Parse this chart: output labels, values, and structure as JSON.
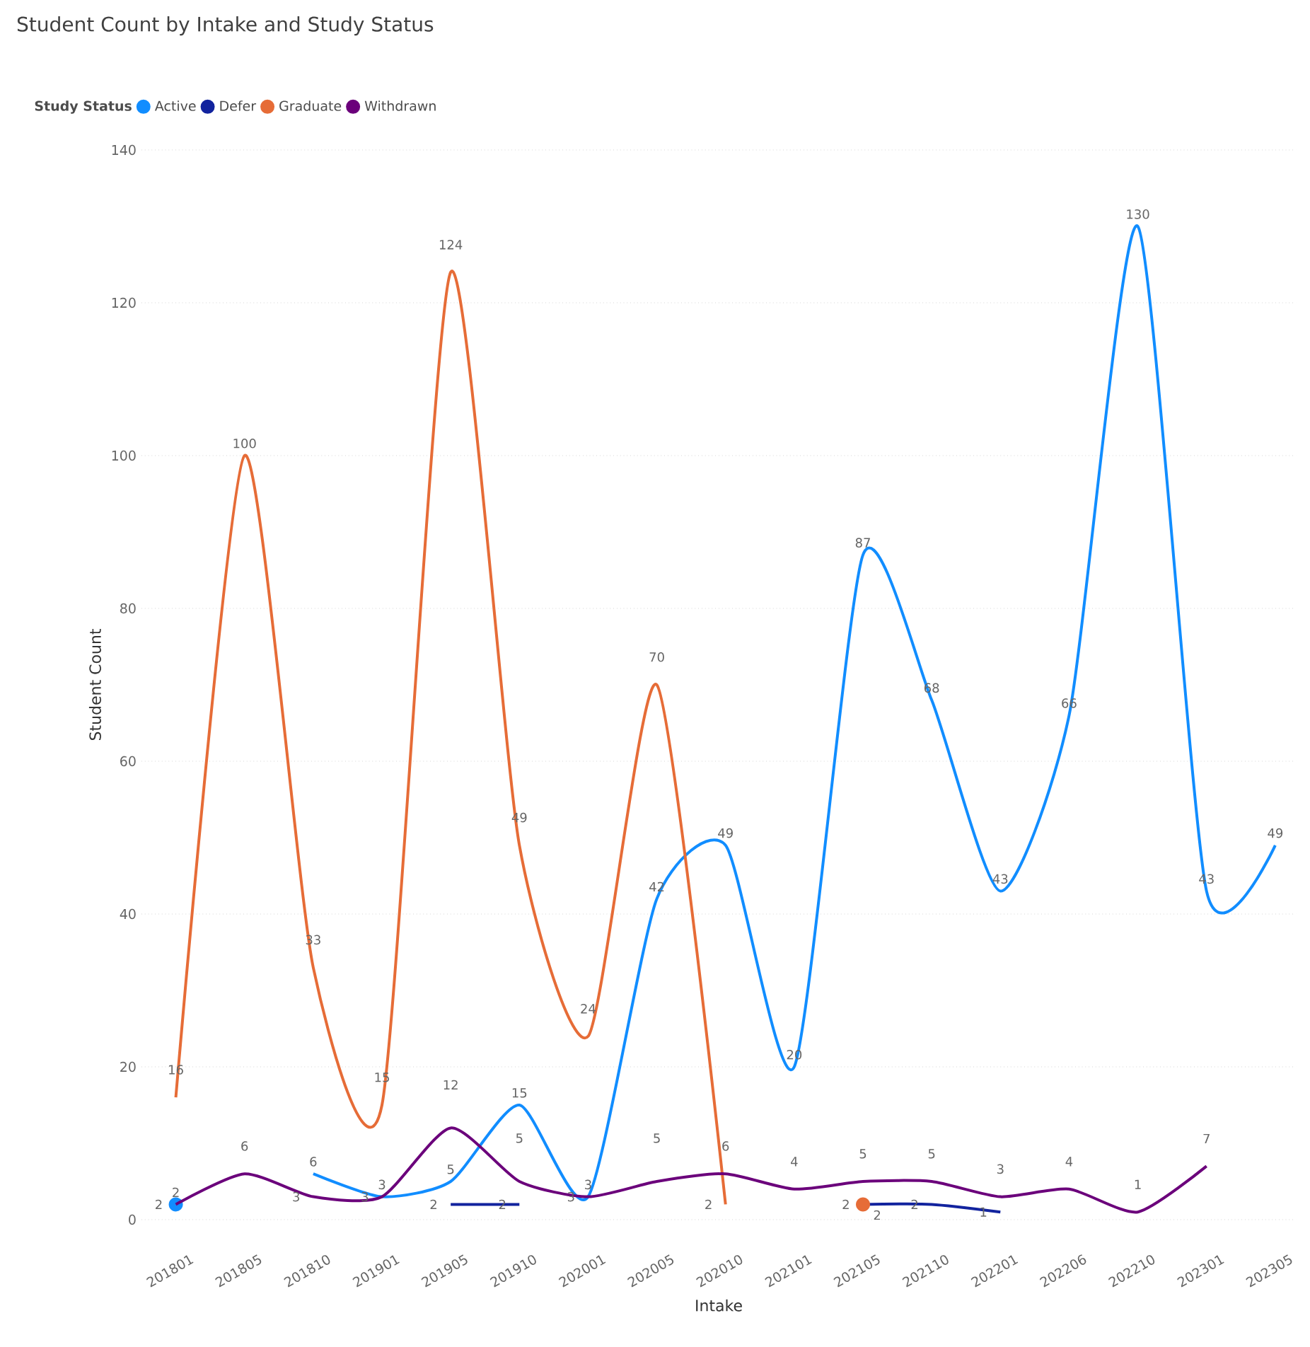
{
  "chart_data": {
    "type": "line",
    "title": "Student Count by Intake and Study Status",
    "xlabel": "Intake",
    "ylabel": "Student Count",
    "legend_title": "Study Status",
    "legend": "top left",
    "grid": "y",
    "marker": "none",
    "data_labels": true,
    "ylim": [
      0,
      140
    ],
    "yticks": [
      0,
      20,
      40,
      60,
      80,
      100,
      120,
      140
    ],
    "categories": [
      "201801",
      "201805",
      "201810",
      "201901",
      "201905",
      "201910",
      "202001",
      "202005",
      "202010",
      "202101",
      "202105",
      "202110",
      "202201",
      "202206",
      "202210",
      "202301",
      "202305"
    ],
    "series": [
      {
        "name": "Active",
        "color": "#118dff",
        "values": [
          2,
          null,
          6,
          3,
          5,
          15,
          3,
          42,
          49,
          20,
          87,
          68,
          43,
          66,
          130,
          43,
          49
        ]
      },
      {
        "name": "Defer",
        "color": "#12239e",
        "values": [
          null,
          null,
          null,
          null,
          2,
          2,
          null,
          null,
          null,
          null,
          2,
          2,
          1,
          null,
          null,
          null,
          null
        ]
      },
      {
        "name": "Graduate",
        "color": "#e66c37",
        "values": [
          16,
          100,
          33,
          15,
          124,
          49,
          24,
          70,
          2,
          null,
          2,
          null,
          null,
          null,
          null,
          null,
          null
        ]
      },
      {
        "name": "Withdrawn",
        "color": "#6b007b",
        "values": [
          2,
          6,
          3,
          3,
          12,
          5,
          3,
          5,
          6,
          4,
          5,
          5,
          3,
          4,
          1,
          7,
          null
        ]
      }
    ]
  }
}
